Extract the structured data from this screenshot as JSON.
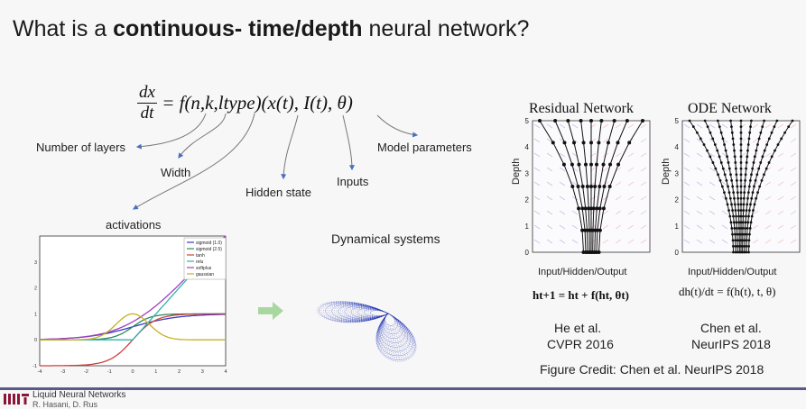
{
  "title": {
    "prefix": "What is a ",
    "bold": "continuous- time/depth",
    "suffix": " neural network?"
  },
  "equation": {
    "numerator": "dx",
    "denominator": "dt",
    "rhs": "= f(n,k,ltype)(x(t), I(t), θ)"
  },
  "annotations": {
    "layers": "Number of layers",
    "width": "Width",
    "hidden_state": "Hidden state",
    "inputs": "Inputs",
    "model_parameters": "Model parameters",
    "activations": "activations"
  },
  "dynamical_systems": "Dynamical systems",
  "residual": {
    "title": "Residual Network",
    "ylabel": "Depth",
    "xlabel": "Input/Hidden/Output",
    "formula": "ht+1 = ht + f(ht, θt)",
    "cite_line1": "He et al.",
    "cite_line2": "CVPR 2016"
  },
  "ode": {
    "title": "ODE Network",
    "ylabel": "Depth",
    "xlabel": "Input/Hidden/Output",
    "formula": "dh(t)/dt = f(h(t), t, θ)",
    "cite_line1": "Chen et al.",
    "cite_line2": "NeurIPS 2018"
  },
  "figure_credit": "Figure Credit: Chen et al. NeurIPS 2018",
  "footer": {
    "logo": "MIT",
    "text": "Liquid Neural Networks",
    "sub": "R. Hasani, D. Rus"
  },
  "chart_data": [
    {
      "type": "line",
      "title": "",
      "xlabel": "",
      "ylabel": "",
      "xlim": [
        -4,
        4
      ],
      "ylim": [
        -1,
        4
      ],
      "x_ticks": [
        "-4",
        "-3",
        "-2",
        "-1",
        "0",
        "1",
        "2",
        "3",
        "4"
      ],
      "y_ticks": [
        "-1",
        "0",
        "1",
        "2",
        "3"
      ],
      "legend_position": "top-right",
      "series": [
        {
          "name": "sigmoid (1.0)",
          "color": "#3a3ac8"
        },
        {
          "name": "sigmoid (2.5)",
          "color": "#2e8b57"
        },
        {
          "name": "tanh",
          "color": "#d04040"
        },
        {
          "name": "relu",
          "color": "#30b0b0"
        },
        {
          "name": "softplus",
          "color": "#a040c0"
        },
        {
          "name": "gaussian",
          "color": "#c8b020"
        }
      ]
    },
    {
      "type": "line",
      "title": "Residual Network",
      "xlabel": "Input/Hidden/Output",
      "ylabel": "Depth",
      "ylim": [
        0,
        5
      ],
      "y_ticks": [
        "0",
        "1",
        "2",
        "3",
        "4",
        "5"
      ]
    },
    {
      "type": "line",
      "title": "ODE Network",
      "xlabel": "Input/Hidden/Output",
      "ylabel": "Depth",
      "ylim": [
        0,
        5
      ],
      "y_ticks": [
        "0",
        "1",
        "2",
        "3",
        "4",
        "5"
      ]
    }
  ]
}
